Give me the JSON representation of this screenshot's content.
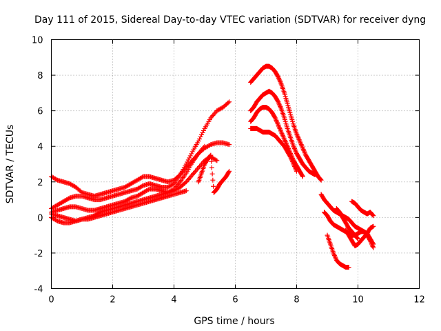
{
  "chart_data": {
    "type": "scatter",
    "title": "Day 111 of 2015, Sidereal Day-to-day VTEC variation (SDTVAR) for receiver dyng",
    "xlabel": "GPS time / hours",
    "ylabel": "SDTVAR / TECUs",
    "xlim": [
      0,
      12
    ],
    "ylim": [
      -4,
      10
    ],
    "x_ticks": [
      "0",
      "2",
      "4",
      "6",
      "8",
      "10",
      "12"
    ],
    "y_ticks": [
      "-4",
      "-2",
      "0",
      "2",
      "4",
      "6",
      "8",
      "10"
    ],
    "grid": true,
    "legend": "none",
    "marker": "+",
    "color": "#ff0000",
    "series": [
      {
        "x": [
          0.0,
          0.2,
          0.4,
          0.6,
          0.8,
          1.0,
          1.2,
          1.4,
          1.6,
          1.8,
          2.0,
          2.2,
          2.4,
          2.6,
          2.8,
          3.0,
          3.2,
          3.4,
          3.6,
          3.8,
          4.0,
          4.2,
          4.4,
          4.6,
          4.8,
          5.0
        ],
        "y": [
          2.3,
          2.1,
          2.0,
          1.9,
          1.7,
          1.4,
          1.3,
          1.2,
          1.3,
          1.4,
          1.5,
          1.6,
          1.7,
          1.9,
          2.1,
          2.3,
          2.3,
          2.2,
          2.1,
          2.0,
          2.1,
          2.4,
          2.8,
          3.2,
          3.6,
          4.0
        ]
      },
      {
        "x": [
          0.0,
          0.2,
          0.4,
          0.6,
          0.8,
          1.0,
          1.2,
          1.4,
          1.6,
          1.8,
          2.0,
          2.2,
          2.4,
          2.6,
          2.8,
          3.0,
          3.2,
          3.4,
          3.6,
          3.8,
          4.0,
          4.2,
          4.4,
          4.6,
          4.8,
          5.0,
          5.2,
          5.4,
          5.6,
          5.8
        ],
        "y": [
          0.5,
          0.7,
          0.9,
          1.1,
          1.2,
          1.2,
          1.1,
          1.0,
          1.0,
          1.1,
          1.2,
          1.3,
          1.4,
          1.5,
          1.6,
          1.8,
          1.9,
          1.8,
          1.7,
          1.7,
          1.9,
          2.4,
          3.0,
          3.7,
          4.3,
          5.0,
          5.6,
          6.0,
          6.2,
          6.5
        ]
      },
      {
        "x": [
          0.0,
          0.2,
          0.4,
          0.6,
          0.8,
          1.0,
          1.2,
          1.4,
          1.6,
          1.8,
          2.0,
          2.2,
          2.4,
          2.6,
          2.8,
          3.0,
          3.2,
          3.4,
          3.6,
          3.8,
          4.0,
          4.2,
          4.4,
          4.6,
          4.8,
          5.0,
          5.2,
          5.4,
          5.6,
          5.8
        ],
        "y": [
          0.3,
          0.4,
          0.5,
          0.6,
          0.6,
          0.5,
          0.4,
          0.4,
          0.5,
          0.6,
          0.7,
          0.8,
          0.9,
          1.1,
          1.2,
          1.4,
          1.6,
          1.6,
          1.5,
          1.4,
          1.6,
          2.0,
          2.5,
          3.1,
          3.6,
          3.9,
          4.1,
          4.2,
          4.2,
          4.1
        ]
      },
      {
        "x": [
          0.0,
          0.2,
          0.4,
          0.6,
          0.8,
          1.0,
          1.2,
          1.4,
          1.6,
          1.8,
          2.0,
          2.2,
          2.4,
          2.6,
          2.8,
          3.0,
          3.2,
          3.4,
          3.6,
          3.8,
          4.0,
          4.2,
          4.4,
          4.6,
          4.8,
          5.0,
          5.2,
          5.4
        ],
        "y": [
          0.2,
          0.1,
          0.0,
          -0.1,
          -0.2,
          -0.1,
          0.0,
          0.1,
          0.3,
          0.4,
          0.5,
          0.6,
          0.7,
          0.8,
          0.9,
          1.0,
          1.1,
          1.2,
          1.3,
          1.4,
          1.5,
          1.7,
          2.0,
          2.4,
          2.8,
          3.2,
          3.4,
          3.2
        ]
      },
      {
        "x": [
          0.0,
          0.2,
          0.4,
          0.6,
          0.8,
          1.0,
          1.2,
          1.4,
          1.6,
          1.8,
          2.0,
          2.2,
          2.4,
          2.6,
          2.8,
          3.0,
          3.2,
          3.4,
          3.6,
          3.8,
          4.0,
          4.2,
          4.4
        ],
        "y": [
          0.0,
          -0.2,
          -0.3,
          -0.3,
          -0.2,
          -0.1,
          -0.1,
          0.0,
          0.1,
          0.2,
          0.3,
          0.4,
          0.5,
          0.6,
          0.7,
          0.8,
          0.9,
          1.0,
          1.1,
          1.2,
          1.3,
          1.4,
          1.5
        ]
      },
      {
        "x": [
          4.8,
          4.9,
          5.0,
          5.1,
          5.2,
          5.3,
          5.4,
          5.5,
          5.6,
          5.7,
          5.8
        ],
        "y": [
          2.0,
          2.5,
          3.0,
          3.3,
          3.5,
          1.4,
          1.6,
          1.9,
          2.1,
          2.3,
          2.6
        ]
      },
      {
        "x": [
          6.5,
          6.6,
          6.7,
          6.8,
          6.9,
          7.0,
          7.1,
          7.2,
          7.3,
          7.4,
          7.5,
          7.6,
          7.7,
          7.8,
          7.9,
          8.0,
          8.1,
          8.2,
          8.3,
          8.4,
          8.5,
          8.6,
          8.7,
          8.8
        ],
        "y": [
          7.6,
          7.8,
          8.0,
          8.2,
          8.4,
          8.5,
          8.5,
          8.4,
          8.2,
          7.9,
          7.5,
          7.0,
          6.4,
          5.8,
          5.2,
          4.7,
          4.3,
          3.9,
          3.5,
          3.2,
          2.9,
          2.6,
          2.3,
          2.1
        ]
      },
      {
        "x": [
          6.5,
          6.6,
          6.7,
          6.8,
          6.9,
          7.0,
          7.1,
          7.2,
          7.3,
          7.4,
          7.5,
          7.6,
          7.7,
          7.8,
          7.9,
          8.0,
          8.1,
          8.2,
          8.3,
          8.4,
          8.5,
          8.6
        ],
        "y": [
          6.0,
          6.2,
          6.5,
          6.7,
          6.9,
          7.0,
          7.1,
          7.0,
          6.8,
          6.5,
          6.1,
          5.6,
          5.0,
          4.5,
          4.0,
          3.6,
          3.3,
          3.0,
          2.8,
          2.6,
          2.5,
          2.4
        ]
      },
      {
        "x": [
          6.5,
          6.6,
          6.7,
          6.8,
          6.9,
          7.0,
          7.1,
          7.2,
          7.3,
          7.4,
          7.5,
          7.6,
          7.7,
          7.8,
          7.9,
          8.0,
          8.1,
          8.2
        ],
        "y": [
          5.4,
          5.6,
          5.9,
          6.1,
          6.2,
          6.2,
          6.1,
          5.9,
          5.6,
          5.2,
          4.8,
          4.4,
          4.0,
          3.6,
          3.2,
          2.9,
          2.6,
          2.3
        ]
      },
      {
        "x": [
          6.5,
          6.6,
          6.7,
          6.8,
          6.9,
          7.0,
          7.1,
          7.2,
          7.3,
          7.4,
          7.5,
          7.6,
          7.7,
          7.8,
          7.9,
          8.0
        ],
        "y": [
          5.0,
          5.0,
          5.0,
          4.9,
          4.8,
          4.8,
          4.8,
          4.7,
          4.6,
          4.4,
          4.2,
          4.0,
          3.7,
          3.4,
          3.0,
          2.6
        ]
      },
      {
        "x": [
          8.8,
          8.9,
          9.0,
          9.1,
          9.2,
          9.3,
          9.4,
          9.5,
          9.6,
          9.7,
          9.8,
          9.9,
          10.0,
          10.1,
          10.2,
          10.3,
          10.4,
          10.5
        ],
        "y": [
          1.3,
          1.0,
          0.8,
          0.6,
          0.4,
          0.3,
          0.2,
          0.1,
          0.0,
          -0.1,
          -0.3,
          -0.5,
          -0.6,
          -0.7,
          -0.8,
          -1.0,
          -1.3,
          -1.7
        ]
      },
      {
        "x": [
          8.9,
          9.0,
          9.1,
          9.2,
          9.3,
          9.4,
          9.5,
          9.6,
          9.7,
          9.8,
          9.9,
          10.0,
          10.1,
          10.2,
          10.3,
          10.4,
          10.5
        ],
        "y": [
          0.3,
          0.1,
          -0.2,
          -0.4,
          -0.5,
          -0.6,
          -0.7,
          -0.8,
          -0.9,
          -1.0,
          -1.0,
          -0.9,
          -0.8,
          -0.8,
          -0.9,
          -1.2,
          -1.5
        ]
      },
      {
        "x": [
          9.0,
          9.1,
          9.2,
          9.3,
          9.4,
          9.5,
          9.6,
          9.7
        ],
        "y": [
          -1.0,
          -1.5,
          -2.0,
          -2.4,
          -2.6,
          -2.7,
          -2.8,
          -2.8
        ]
      },
      {
        "x": [
          9.3,
          9.4,
          9.5,
          9.6,
          9.7,
          9.8,
          9.9,
          10.0
        ],
        "y": [
          0.5,
          0.3,
          0.0,
          -0.3,
          -0.6,
          -0.8,
          -1.0,
          -1.2
        ]
      },
      {
        "x": [
          9.8,
          9.9,
          10.0,
          10.1,
          10.2,
          10.3,
          10.4,
          10.5
        ],
        "y": [
          0.9,
          0.8,
          0.6,
          0.4,
          0.3,
          0.2,
          0.3,
          0.1
        ]
      },
      {
        "x": [
          9.6,
          9.7,
          9.8,
          9.9,
          10.0,
          10.1,
          10.2,
          10.3,
          10.4,
          10.5
        ],
        "y": [
          -0.7,
          -1.0,
          -1.3,
          -1.6,
          -1.5,
          -1.3,
          -1.1,
          -0.9,
          -0.6,
          -0.5
        ]
      }
    ]
  }
}
